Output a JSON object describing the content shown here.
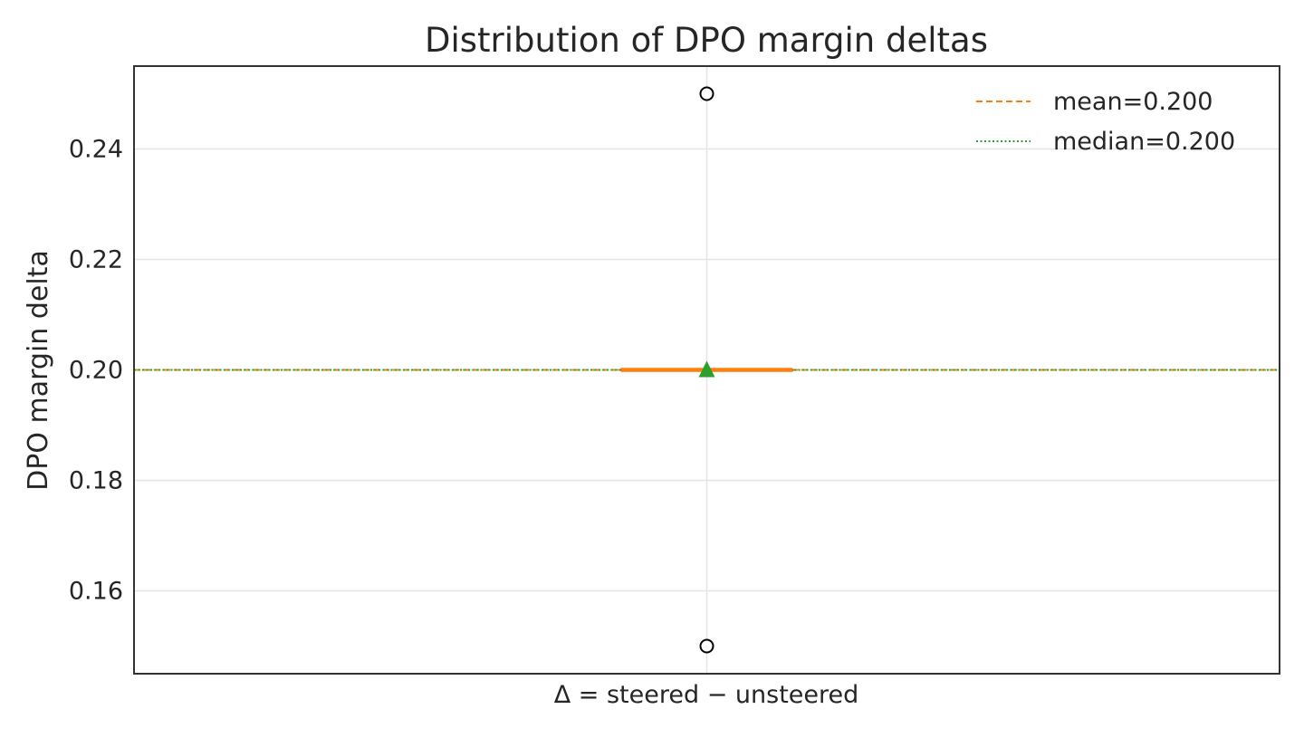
{
  "chart_data": {
    "type": "box",
    "title": "Distribution of DPO margin deltas",
    "xlabel": "Δ = steered − unsteered",
    "ylabel": "DPO margin delta",
    "ylim": [
      0.145,
      0.255
    ],
    "yticks": [
      0.16,
      0.18,
      0.2,
      0.22,
      0.24
    ],
    "ytick_labels": [
      "0.16",
      "0.18",
      "0.20",
      "0.22",
      "0.24"
    ],
    "grid": true,
    "legend_placement": "top-right",
    "box": {
      "q1": 0.2,
      "median": 0.2,
      "q3": 0.2,
      "whisker_low": 0.2,
      "whisker_high": 0.2,
      "mean": 0.2,
      "outliers": [
        0.25,
        0.15
      ]
    },
    "reference_lines": [
      {
        "name": "mean=0.200",
        "value": 0.2,
        "style": "dashed",
        "color": "#ff7f0e"
      },
      {
        "name": "median=0.200",
        "value": 0.2,
        "style": "dotted",
        "color": "#2ca02c"
      }
    ],
    "colors": {
      "median_line": "#ff7f0e",
      "mean_marker": "#2ca02c",
      "outlier_edge": "#000000",
      "frame": "#333333",
      "grid": "#e5e5e5"
    }
  }
}
